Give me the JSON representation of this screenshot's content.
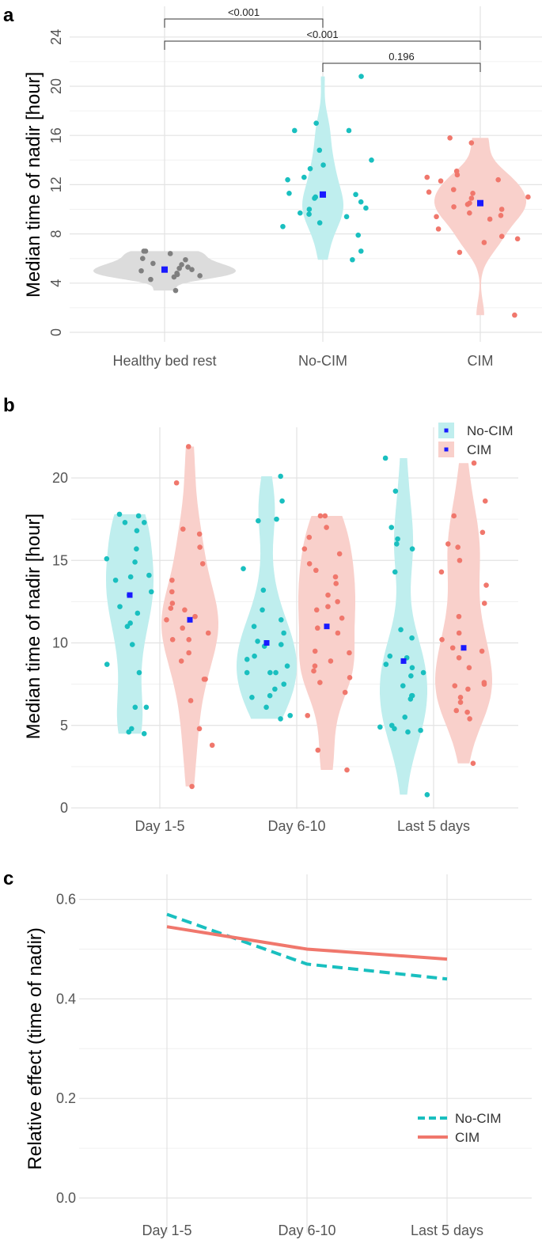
{
  "chart_data": [
    {
      "panel": "a",
      "type": "violin",
      "ylabel": "Median time of nadir [hour]",
      "ylim": [
        0,
        24
      ],
      "yticks": [
        "0",
        "4",
        "8",
        "12",
        "16",
        "20",
        "24"
      ],
      "categories": [
        "Healthy bed rest",
        "No-CIM",
        "CIM"
      ],
      "groups": [
        {
          "name": "Healthy bed rest",
          "color": "#7f7f7f",
          "fill": "#dcdcdc",
          "mean": 5.1,
          "points": [
            3.4,
            4.3,
            4.5,
            4.6,
            4.7,
            4.8,
            5.0,
            5.1,
            5.2,
            5.3,
            5.5,
            5.6,
            5.9,
            6.0,
            6.4,
            6.6,
            6.6
          ]
        },
        {
          "name": "No-CIM",
          "color": "#19bfbf",
          "fill": "#bfeeee",
          "mean": 11.2,
          "points": [
            5.9,
            6.6,
            7.9,
            8.6,
            8.9,
            9.4,
            9.6,
            9.7,
            10.0,
            10.1,
            10.6,
            10.9,
            11.0,
            11.2,
            11.3,
            12.4,
            12.6,
            13.3,
            13.6,
            14.0,
            14.8,
            16.4,
            16.4,
            17.0,
            20.8
          ]
        },
        {
          "name": "CIM",
          "color": "#f0776c",
          "fill": "#f9d0cb",
          "mean": 10.5,
          "points": [
            1.4,
            6.5,
            7.3,
            7.6,
            7.8,
            8.4,
            9.2,
            9.4,
            9.5,
            9.7,
            10.0,
            10.2,
            10.4,
            10.5,
            10.9,
            11.0,
            11.3,
            11.4,
            11.6,
            12.3,
            12.4,
            12.6,
            12.8,
            13.1,
            15.4,
            15.8
          ]
        }
      ],
      "comparisons": [
        {
          "groups": [
            "Healthy bed rest",
            "No-CIM"
          ],
          "label": "<0.001"
        },
        {
          "groups": [
            "Healthy bed rest",
            "CIM"
          ],
          "label": "<0.001"
        },
        {
          "groups": [
            "No-CIM",
            "CIM"
          ],
          "label": "0.196"
        }
      ]
    },
    {
      "panel": "b",
      "type": "violin",
      "ylabel": "Median time of nadir [hour]",
      "ylim": [
        0,
        22
      ],
      "yticks": [
        "0",
        "5",
        "10",
        "15",
        "20"
      ],
      "categories": [
        "Day 1-5",
        "Day 6-10",
        "Last 5 days"
      ],
      "legend": [
        "No-CIM",
        "CIM"
      ],
      "series": [
        {
          "name": "No-CIM",
          "color": "#19bfbf",
          "fill": "#bfeeee",
          "groups": [
            {
              "category": "Day 1-5",
              "mean": 12.9,
              "points": [
                4.5,
                4.6,
                4.8,
                6.1,
                6.1,
                8.2,
                8.7,
                9.9,
                11.0,
                11.2,
                11.8,
                12.2,
                12.9,
                13.1,
                13.8,
                14.0,
                14.1,
                14.9,
                15.1,
                15.7,
                16.8,
                17.3,
                17.3,
                17.7,
                17.8
              ]
            },
            {
              "category": "Day 6-10",
              "mean": 10.0,
              "points": [
                5.4,
                5.6,
                6.1,
                6.7,
                6.8,
                7.2,
                7.5,
                8.2,
                8.2,
                8.2,
                8.6,
                9.0,
                9.2,
                9.8,
                9.9,
                10.1,
                10.6,
                11.0,
                11.4,
                12.0,
                13.2,
                14.5,
                17.4,
                17.5,
                18.6,
                20.1
              ]
            },
            {
              "category": "Last 5 days",
              "mean": 8.9,
              "points": [
                0.8,
                4.6,
                4.7,
                4.8,
                4.9,
                5.0,
                5.5,
                6.6,
                6.8,
                6.8,
                7.4,
                8.0,
                8.2,
                8.5,
                8.7,
                9.1,
                9.2,
                10.3,
                10.8,
                14.3,
                15.7,
                16.0,
                16.3,
                17.0,
                19.2,
                21.2
              ]
            }
          ]
        },
        {
          "name": "CIM",
          "color": "#f0776c",
          "fill": "#f9d0cb",
          "groups": [
            {
              "category": "Day 1-5",
              "mean": 11.4,
              "points": [
                1.3,
                3.8,
                4.8,
                6.5,
                7.8,
                7.8,
                8.9,
                9.4,
                10.2,
                10.2,
                10.6,
                10.9,
                11.4,
                11.6,
                12.0,
                12.1,
                12.4,
                13.1,
                13.8,
                14.8,
                15.8,
                16.6,
                16.9,
                19.7,
                21.9
              ]
            },
            {
              "category": "Day 6-10",
              "mean": 11.0,
              "points": [
                2.3,
                3.5,
                5.6,
                7.0,
                7.6,
                7.9,
                8.3,
                8.6,
                8.9,
                9.4,
                9.5,
                10.6,
                10.9,
                11.5,
                12.0,
                12.2,
                12.5,
                12.9,
                13.6,
                14.0,
                14.4,
                14.8,
                15.4,
                15.7,
                16.4,
                17.0,
                17.7,
                17.7
              ]
            },
            {
              "category": "Last 5 days",
              "mean": 9.7,
              "points": [
                2.7,
                5.4,
                5.8,
                5.9,
                6.4,
                6.7,
                7.2,
                7.4,
                7.5,
                7.6,
                8.5,
                9.1,
                9.5,
                9.7,
                10.2,
                10.6,
                11.6,
                12.4,
                13.5,
                14.3,
                15.0,
                15.8,
                16.0,
                16.7,
                17.7,
                18.6,
                20.9
              ]
            }
          ]
        }
      ]
    },
    {
      "panel": "c",
      "type": "line",
      "ylabel": "Relative effect (time of nadir)",
      "ylim": [
        0,
        0.6
      ],
      "yticks": [
        "0.0",
        "0.2",
        "0.4",
        "0.6"
      ],
      "categories": [
        "Day 1-5",
        "Day 6-10",
        "Last 5 days"
      ],
      "legend": [
        "No-CIM",
        "CIM"
      ],
      "series": [
        {
          "name": "No-CIM",
          "color": "#19bfbf",
          "dashed": true,
          "values": [
            0.57,
            0.47,
            0.44
          ]
        },
        {
          "name": "CIM",
          "color": "#f0776c",
          "dashed": false,
          "values": [
            0.545,
            0.5,
            0.48
          ]
        }
      ]
    }
  ],
  "panel_labels": [
    "a",
    "b",
    "c"
  ],
  "mean_marker_color": "#1a1aff"
}
